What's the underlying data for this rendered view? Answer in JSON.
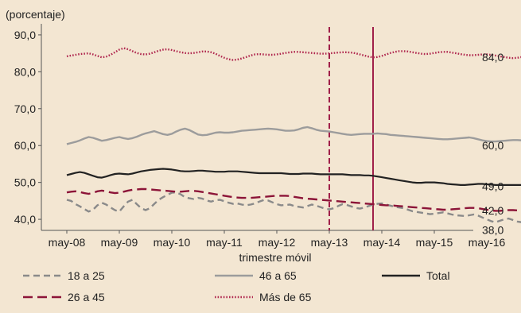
{
  "chart_data": {
    "type": "line",
    "unit_label": "(porcentaje)",
    "xlabel": "trimestre móvil",
    "ylabel": "",
    "x_start": "may-08",
    "x_step": "1 mes",
    "x_ticks": [
      "may-08",
      "may-09",
      "may-10",
      "may-11",
      "may-12",
      "may-13",
      "may-14",
      "may-15",
      "may-16"
    ],
    "y_ticks": [
      "40,0",
      "50,0",
      "60,0",
      "70,0",
      "80,0",
      "90,0"
    ],
    "y_tick_values": [
      40,
      50,
      60,
      70,
      80,
      90
    ],
    "ylim": [
      37,
      93
    ],
    "grid": false,
    "legend_position": "bottom",
    "vertical_markers": [
      {
        "x": "may-13",
        "style": "dashed",
        "color": "#a0204a"
      },
      {
        "x": "mar-14",
        "style": "solid",
        "color": "#a0204a"
      }
    ],
    "series": [
      {
        "name": "18 a 25",
        "color": "#8a8a8a",
        "dash": "8,5",
        "end_label": "38,0",
        "values": [
          45.3,
          45.0,
          44.1,
          43.5,
          42.8,
          42.1,
          42.6,
          43.8,
          44.5,
          44.0,
          43.2,
          42.5,
          42.1,
          43.5,
          44.8,
          45.3,
          44.1,
          43.0,
          42.5,
          43.0,
          44.2,
          45.3,
          46.0,
          46.6,
          47.2,
          47.3,
          46.8,
          46.0,
          45.7,
          45.5,
          45.8,
          45.6,
          45.1,
          44.8,
          45.2,
          45.3,
          44.9,
          44.5,
          44.2,
          44.3,
          44.0,
          43.8,
          44.0,
          44.3,
          44.8,
          45.2,
          45.1,
          44.6,
          44.1,
          43.8,
          43.9,
          44.0,
          43.6,
          43.4,
          43.2,
          43.6,
          44.0,
          43.7,
          43.3,
          42.9,
          42.7,
          43.0,
          43.6,
          44.1,
          43.9,
          43.5,
          43.1,
          42.9,
          43.2,
          43.6,
          44.0,
          44.2,
          44.3,
          44.0,
          43.7,
          43.4,
          43.2,
          43.0,
          42.6,
          42.2,
          42.0,
          41.8,
          41.6,
          41.4,
          41.5,
          41.7,
          41.9,
          41.6,
          41.3,
          41.1,
          41.0,
          40.9,
          41.1,
          41.3,
          41.0,
          40.5,
          40.0,
          39.5,
          39.2,
          39.6,
          40.0,
          40.2,
          39.8,
          39.4,
          39.2,
          39.5,
          39.8,
          40.0,
          39.7,
          39.5,
          39.6,
          39.8,
          39.9,
          39.7,
          39.5,
          39.6,
          39.8,
          39.6,
          39.1,
          38.6,
          38.2,
          38.0,
          38.4,
          38.7,
          38.3,
          38.0,
          38.0
        ]
      },
      {
        "name": "46 a 65",
        "color": "#9c9c9c",
        "dash": "",
        "end_label": "60,0",
        "values": [
          60.4,
          60.7,
          61.0,
          61.4,
          61.9,
          62.3,
          62.1,
          61.7,
          61.3,
          61.5,
          61.8,
          62.1,
          62.3,
          62.0,
          61.8,
          62.0,
          62.4,
          62.9,
          63.3,
          63.6,
          63.9,
          63.5,
          63.1,
          62.9,
          63.2,
          63.8,
          64.3,
          64.6,
          64.2,
          63.6,
          63.0,
          62.8,
          62.9,
          63.2,
          63.5,
          63.6,
          63.5,
          63.5,
          63.6,
          63.8,
          64.0,
          64.1,
          64.2,
          64.3,
          64.4,
          64.5,
          64.6,
          64.5,
          64.4,
          64.2,
          64.0,
          64.0,
          64.1,
          64.4,
          64.8,
          65.0,
          64.7,
          64.3,
          64.0,
          63.9,
          63.8,
          63.6,
          63.4,
          63.2,
          63.0,
          62.9,
          63.0,
          63.1,
          63.2,
          63.2,
          63.2,
          63.3,
          63.2,
          63.1,
          62.9,
          62.8,
          62.7,
          62.6,
          62.5,
          62.4,
          62.3,
          62.2,
          62.1,
          62.0,
          61.9,
          61.8,
          61.7,
          61.7,
          61.8,
          61.9,
          62.0,
          62.1,
          62.2,
          62.0,
          61.7,
          61.4,
          61.2,
          61.1,
          61.1,
          61.2,
          61.3,
          61.4,
          61.5,
          61.5,
          61.4,
          61.3,
          61.3,
          61.4,
          61.5,
          61.6,
          61.7,
          61.8,
          61.8,
          61.7,
          61.6,
          61.5,
          61.4,
          61.3,
          61.2,
          61.2,
          61.3,
          61.3,
          61.2,
          61.0,
          60.7,
          60.4,
          60.2,
          60.1,
          60.0
        ]
      },
      {
        "name": "Total",
        "color": "#222222",
        "dash": "",
        "end_label": "49,0",
        "values": [
          52.0,
          52.3,
          52.6,
          52.8,
          52.6,
          52.2,
          51.8,
          51.4,
          51.3,
          51.6,
          52.0,
          52.3,
          52.4,
          52.3,
          52.2,
          52.4,
          52.7,
          53.0,
          53.2,
          53.4,
          53.5,
          53.6,
          53.7,
          53.6,
          53.5,
          53.3,
          53.1,
          53.0,
          53.0,
          53.1,
          53.2,
          53.2,
          53.1,
          53.0,
          52.9,
          52.9,
          52.9,
          53.0,
          53.0,
          53.0,
          52.9,
          52.8,
          52.7,
          52.6,
          52.5,
          52.5,
          52.5,
          52.5,
          52.5,
          52.5,
          52.4,
          52.3,
          52.3,
          52.3,
          52.4,
          52.4,
          52.4,
          52.3,
          52.2,
          52.2,
          52.2,
          52.2,
          52.2,
          52.2,
          52.1,
          52.0,
          52.0,
          52.0,
          51.9,
          51.9,
          51.8,
          51.6,
          51.4,
          51.2,
          51.0,
          50.8,
          50.6,
          50.4,
          50.2,
          50.0,
          49.9,
          49.9,
          50.0,
          50.0,
          50.0,
          49.9,
          49.8,
          49.6,
          49.5,
          49.4,
          49.3,
          49.3,
          49.4,
          49.5,
          49.6,
          49.6,
          49.5,
          49.4,
          49.3,
          49.3,
          49.3,
          49.3,
          49.3,
          49.3,
          49.3,
          49.3,
          49.3,
          49.3,
          49.3,
          49.3,
          49.3,
          49.3,
          49.2,
          49.1,
          49.0,
          48.9,
          48.8,
          48.7,
          48.6,
          48.6,
          48.6,
          48.6,
          48.7,
          48.8,
          48.9,
          49.0,
          49.0,
          49.0,
          49.0
        ]
      },
      {
        "name": "26 a 45",
        "color": "#8c1438",
        "dash": "12,6",
        "end_label": "42,0",
        "values": [
          47.3,
          47.5,
          47.6,
          47.4,
          47.1,
          46.9,
          47.2,
          47.6,
          47.8,
          47.6,
          47.3,
          47.1,
          47.2,
          47.5,
          47.8,
          48.0,
          48.1,
          48.2,
          48.2,
          48.1,
          48.0,
          47.9,
          47.8,
          47.7,
          47.6,
          47.5,
          47.5,
          47.6,
          47.7,
          47.7,
          47.6,
          47.4,
          47.2,
          47.0,
          46.8,
          46.6,
          46.4,
          46.2,
          46.0,
          45.9,
          45.8,
          45.8,
          45.8,
          45.9,
          46.0,
          46.1,
          46.2,
          46.3,
          46.4,
          46.4,
          46.4,
          46.3,
          46.1,
          45.9,
          45.7,
          45.6,
          45.5,
          45.4,
          45.3,
          45.2,
          45.1,
          45.0,
          44.9,
          44.8,
          44.7,
          44.6,
          44.5,
          44.4,
          44.3,
          44.2,
          44.1,
          44.0,
          43.9,
          43.8,
          43.8,
          43.7,
          43.6,
          43.5,
          43.4,
          43.3,
          43.2,
          43.1,
          43.0,
          42.9,
          42.8,
          42.7,
          42.6,
          42.6,
          42.7,
          42.8,
          42.9,
          43.0,
          43.1,
          43.1,
          43.0,
          42.8,
          42.6,
          42.4,
          42.3,
          42.3,
          42.4,
          42.5,
          42.5,
          42.4,
          42.3,
          42.2,
          42.1,
          42.0,
          42.0,
          42.1,
          42.2,
          42.2,
          42.2,
          42.1,
          42.0,
          41.9,
          41.8,
          41.7,
          41.7,
          41.8,
          41.9,
          42.0,
          42.0,
          42.0,
          42.0,
          42.0,
          42.0,
          42.0,
          42.0
        ]
      },
      {
        "name": "Más de 65",
        "color": "#b0284f",
        "dash": "1.6,2",
        "end_label": "84,0",
        "values": [
          84.2,
          84.4,
          84.6,
          84.8,
          84.9,
          85.0,
          84.7,
          84.3,
          83.9,
          84.1,
          84.6,
          85.3,
          86.0,
          86.4,
          86.1,
          85.6,
          85.1,
          84.8,
          84.7,
          84.9,
          85.3,
          85.7,
          86.0,
          86.1,
          85.9,
          85.6,
          85.3,
          85.1,
          85.0,
          85.1,
          85.3,
          85.5,
          85.5,
          85.3,
          84.9,
          84.3,
          83.8,
          83.4,
          83.2,
          83.3,
          83.6,
          84.0,
          84.4,
          84.7,
          84.8,
          84.7,
          84.6,
          84.6,
          84.7,
          84.9,
          85.1,
          85.3,
          85.4,
          85.4,
          85.3,
          85.2,
          85.1,
          85.0,
          84.9,
          84.9,
          85.0,
          85.1,
          85.2,
          85.3,
          85.3,
          85.2,
          85.0,
          84.7,
          84.4,
          84.1,
          83.9,
          84.0,
          84.3,
          84.7,
          85.1,
          85.4,
          85.6,
          85.6,
          85.5,
          85.3,
          85.1,
          84.9,
          84.8,
          84.9,
          85.1,
          85.3,
          85.4,
          85.4,
          85.2,
          85.0,
          84.8,
          84.6,
          84.5,
          84.5,
          84.6,
          84.7,
          84.7,
          84.6,
          84.4,
          84.2,
          84.0,
          83.8,
          83.7,
          83.8,
          84.0,
          84.3,
          84.5,
          84.5,
          84.3,
          84.0,
          83.7,
          83.4,
          83.2,
          83.1,
          83.2,
          83.4,
          83.6,
          83.8,
          83.9,
          83.9,
          83.8,
          83.6,
          83.5,
          83.6,
          83.8,
          84.0,
          84.0
        ]
      }
    ],
    "legend_order": [
      "18 a 25",
      "46 a 65",
      "Total",
      "26 a 45",
      "Más de 65"
    ]
  }
}
